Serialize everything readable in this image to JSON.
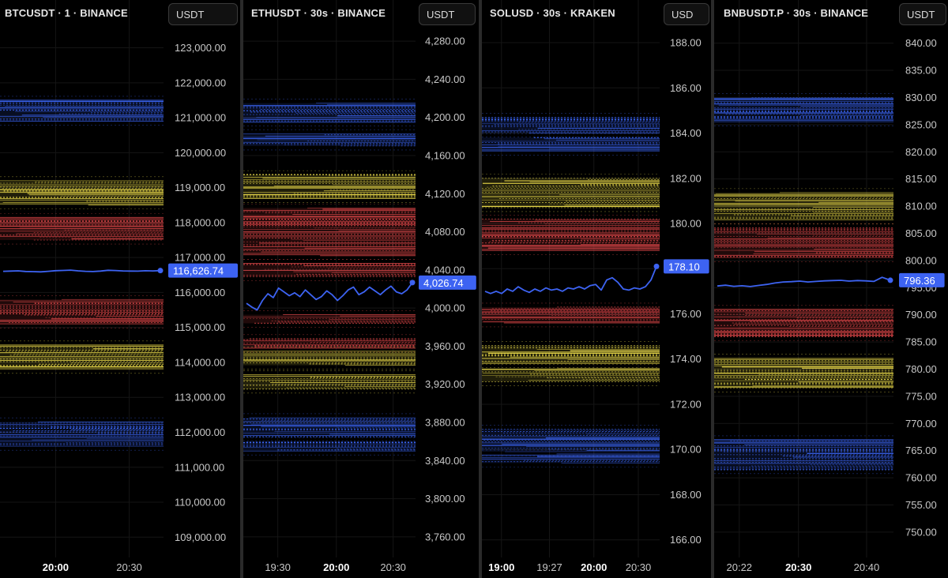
{
  "colors": {
    "background": "#000000",
    "blue": "#3a63f0",
    "yellow": "#e9d94a",
    "red": "#e2484a",
    "price_line": "#3d63f2",
    "label_bg": "#3d63f2",
    "axis_text": "#c8c8c8"
  },
  "panels": [
    {
      "title": "BTCUSDT · 1 · BINANCE",
      "unit": "USDT",
      "last_price_label": "116,626.74",
      "y_tick_labels": [
        "123,000.00",
        "122,000.00",
        "121,000.00",
        "120,000.00",
        "119,000.00",
        "118,000.00",
        "117,000.00",
        "116,000.00",
        "115,000.00",
        "114,000.00",
        "113,000.00",
        "112,000.00",
        "111,000.00",
        "110,000.00",
        "109,000.00"
      ],
      "x_tick_labels": [
        {
          "text": "20:00",
          "bold": true
        },
        {
          "text": "20:30",
          "bold": false
        }
      ]
    },
    {
      "title": "ETHUSDT · 30s · BINANCE",
      "unit": "USDT",
      "last_price_label": "4,026.74",
      "y_tick_labels": [
        "4,280.00",
        "4,240.00",
        "4,200.00",
        "4,160.00",
        "4,120.00",
        "4,080.00",
        "4,040.00",
        "4,000.00",
        "3,960.00",
        "3,920.00",
        "3,880.00",
        "3,840.00",
        "3,800.00",
        "3,760.00"
      ],
      "x_tick_labels": [
        {
          "text": "19:30",
          "bold": false
        },
        {
          "text": "20:00",
          "bold": true
        },
        {
          "text": "20:30",
          "bold": false
        }
      ]
    },
    {
      "title": "SOLUSD · 30s · KRAKEN",
      "unit": "USD",
      "last_price_label": "178.10",
      "y_tick_labels": [
        "188.00",
        "186.00",
        "184.00",
        "182.00",
        "180.00",
        "178.00",
        "176.00",
        "174.00",
        "172.00",
        "170.00",
        "168.00",
        "166.00"
      ],
      "x_tick_labels": [
        {
          "text": "19:00",
          "bold": true
        },
        {
          "text": "19:27",
          "bold": false
        },
        {
          "text": "20:00",
          "bold": true
        },
        {
          "text": "20:30",
          "bold": false
        }
      ]
    },
    {
      "title": "BNBUSDT.P · 30s · BINANCE",
      "unit": "USDT",
      "last_price_label": "796.36",
      "y_tick_labels": [
        "840.00",
        "835.00",
        "830.00",
        "825.00",
        "820.00",
        "815.00",
        "810.00",
        "805.00",
        "800.00",
        "795.00",
        "790.00",
        "785.00",
        "780.00",
        "775.00",
        "770.00",
        "765.00",
        "760.00",
        "755.00",
        "750.00"
      ],
      "x_tick_labels": [
        {
          "text": "20:22",
          "bold": false
        },
        {
          "text": "20:30",
          "bold": true
        },
        {
          "text": "20:40",
          "bold": false
        }
      ]
    }
  ],
  "chart_data": [
    {
      "type": "line",
      "symbol": "BTCUSDT",
      "interval": "1",
      "exchange": "BINANCE",
      "ylim": [
        108600,
        123600
      ],
      "y_ticks": [
        123000,
        122000,
        121000,
        120000,
        119000,
        118000,
        117000,
        116000,
        115000,
        114000,
        113000,
        112000,
        111000,
        110000,
        109000
      ],
      "x_ticks": [
        "20:00",
        "20:30"
      ],
      "last_price": 116626.74,
      "series": [
        {
          "values": [
            116605,
            116612,
            116620,
            116602,
            116598,
            116590,
            116605,
            116625,
            116632,
            116640,
            116620,
            116605,
            116600,
            116612,
            116635,
            116628,
            116618,
            116612,
            116610,
            116622,
            116618,
            116626.74
          ]
        }
      ],
      "bands": [
        {
          "color": "blue",
          "from": 121500,
          "to": 120900
        },
        {
          "color": "yellow",
          "from": 119200,
          "to": 118500
        },
        {
          "color": "red",
          "from": 118150,
          "to": 117500
        },
        {
          "color": "red",
          "from": 115800,
          "to": 115100
        },
        {
          "color": "yellow",
          "from": 114500,
          "to": 113800
        },
        {
          "color": "blue",
          "from": 112300,
          "to": 111600
        }
      ]
    },
    {
      "type": "line",
      "symbol": "ETHUSDT",
      "interval": "30s",
      "exchange": "BINANCE",
      "ylim": [
        3745,
        4295
      ],
      "y_ticks": [
        4280,
        4240,
        4200,
        4160,
        4120,
        4080,
        4040,
        4000,
        3960,
        3920,
        3880,
        3840,
        3800,
        3760
      ],
      "x_ticks": [
        "19:30",
        "20:00",
        "20:30"
      ],
      "last_price": 4026.74,
      "series": [
        {
          "values": [
            4005,
            4001,
            3998,
            4008,
            4015,
            4011,
            4021,
            4017,
            4013,
            4016,
            4012,
            4019,
            4014,
            4009,
            4012,
            4018,
            4014,
            4008,
            4013,
            4019,
            4022,
            4014,
            4017,
            4022,
            4018,
            4014,
            4019,
            4023,
            4017,
            4015,
            4019,
            4026.74
          ]
        }
      ],
      "bands": [
        {
          "color": "blue",
          "from": 4215,
          "to": 4195
        },
        {
          "color": "blue",
          "from": 4183,
          "to": 4170
        },
        {
          "color": "yellow",
          "from": 4140,
          "to": 4115
        },
        {
          "color": "red",
          "from": 4105,
          "to": 4055
        },
        {
          "color": "red",
          "from": 4047,
          "to": 4033
        },
        {
          "color": "red",
          "from": 3993,
          "to": 3984
        },
        {
          "color": "red",
          "from": 3968,
          "to": 3958
        },
        {
          "color": "yellow",
          "from": 3955,
          "to": 3940
        },
        {
          "color": "yellow",
          "from": 3930,
          "to": 3915
        },
        {
          "color": "blue",
          "from": 3885,
          "to": 3865
        },
        {
          "color": "blue",
          "from": 3860,
          "to": 3850
        }
      ]
    },
    {
      "type": "line",
      "symbol": "SOLUSD",
      "interval": "30s",
      "exchange": "KRAKEN",
      "ylim": [
        165.5,
        188.7
      ],
      "y_ticks": [
        188,
        186,
        184,
        182,
        180,
        178,
        176,
        174,
        172,
        170,
        168,
        166
      ],
      "x_ticks": [
        "19:00",
        "19:27",
        "20:00",
        "20:30"
      ],
      "last_price": 178.1,
      "series": [
        {
          "values": [
            177.0,
            176.9,
            177.0,
            176.9,
            177.1,
            177.0,
            177.2,
            177.05,
            176.95,
            177.1,
            177.0,
            177.15,
            177.05,
            177.1,
            177.0,
            177.15,
            177.1,
            177.2,
            177.1,
            177.25,
            177.3,
            177.05,
            177.5,
            177.6,
            177.4,
            177.1,
            177.05,
            177.15,
            177.1,
            177.2,
            177.5,
            178.1
          ]
        }
      ],
      "bands": [
        {
          "color": "blue",
          "from": 184.7,
          "to": 184.0
        },
        {
          "color": "blue",
          "from": 183.8,
          "to": 183.2
        },
        {
          "color": "yellow",
          "from": 182.0,
          "to": 180.7
        },
        {
          "color": "red",
          "from": 180.2,
          "to": 178.8
        },
        {
          "color": "red",
          "from": 176.3,
          "to": 175.6
        },
        {
          "color": "yellow",
          "from": 174.6,
          "to": 173.8
        },
        {
          "color": "yellow",
          "from": 173.6,
          "to": 173.0
        },
        {
          "color": "blue",
          "from": 170.9,
          "to": 169.9
        },
        {
          "color": "blue",
          "from": 169.8,
          "to": 169.4
        }
      ]
    },
    {
      "type": "line",
      "symbol": "BNBUSDT.P",
      "interval": "30s",
      "exchange": "BINANCE",
      "ylim": [
        746.5,
        843
      ],
      "y_ticks": [
        840,
        835,
        830,
        825,
        820,
        815,
        810,
        805,
        800,
        795,
        790,
        785,
        780,
        775,
        770,
        765,
        760,
        755,
        750
      ],
      "x_ticks": [
        "20:22",
        "20:30",
        "20:40"
      ],
      "last_price": 796.36,
      "series": [
        {
          "values": [
            795.3,
            795.45,
            795.25,
            795.35,
            795.2,
            795.4,
            795.6,
            795.85,
            796.05,
            796.1,
            796.2,
            796.05,
            796.15,
            796.25,
            796.3,
            796.35,
            796.2,
            796.3,
            796.25,
            796.15,
            796.9,
            796.36
          ]
        }
      ],
      "bands": [
        {
          "color": "blue",
          "from": 830,
          "to": 825.5
        },
        {
          "color": "yellow",
          "from": 812.5,
          "to": 807.5
        },
        {
          "color": "red",
          "from": 806,
          "to": 800.5
        },
        {
          "color": "red",
          "from": 791,
          "to": 786
        },
        {
          "color": "yellow",
          "from": 782,
          "to": 776.5
        },
        {
          "color": "blue",
          "from": 767,
          "to": 761.5
        }
      ]
    }
  ]
}
